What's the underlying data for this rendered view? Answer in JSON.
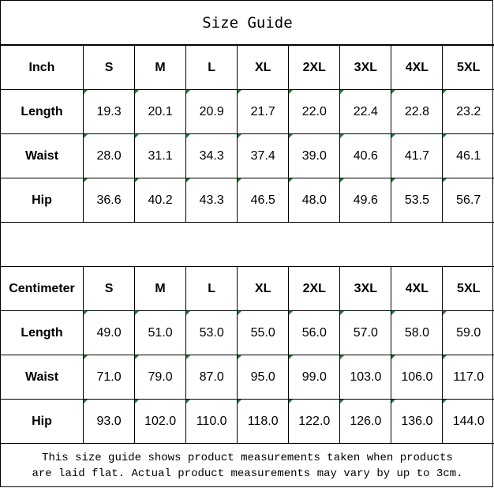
{
  "title": "Size Guide",
  "sizes": [
    "S",
    "M",
    "L",
    "XL",
    "2XL",
    "3XL",
    "4XL",
    "5XL"
  ],
  "inch": {
    "unit": "Inch",
    "rows": [
      {
        "label": "Length",
        "values": [
          "19.3",
          "20.1",
          "20.9",
          "21.7",
          "22.0",
          "22.4",
          "22.8",
          "23.2"
        ]
      },
      {
        "label": "Waist",
        "values": [
          "28.0",
          "31.1",
          "34.3",
          "37.4",
          "39.0",
          "40.6",
          "41.7",
          "46.1"
        ]
      },
      {
        "label": "Hip",
        "values": [
          "36.6",
          "40.2",
          "43.3",
          "46.5",
          "48.0",
          "49.6",
          "53.5",
          "56.7"
        ]
      }
    ]
  },
  "cm": {
    "unit": "Centimeter",
    "rows": [
      {
        "label": "Length",
        "values": [
          "49.0",
          "51.0",
          "53.0",
          "55.0",
          "56.0",
          "57.0",
          "58.0",
          "59.0"
        ]
      },
      {
        "label": "Waist",
        "values": [
          "71.0",
          "79.0",
          "87.0",
          "95.0",
          "99.0",
          "103.0",
          "106.0",
          "117.0"
        ]
      },
      {
        "label": "Hip",
        "values": [
          "93.0",
          "102.0",
          "110.0",
          "118.0",
          "122.0",
          "126.0",
          "136.0",
          "144.0"
        ]
      }
    ]
  },
  "footer": {
    "line1": "This size guide shows product measurements taken when products",
    "line2": "are laid flat. Actual product measurements may vary by up to 3cm."
  },
  "colors": {
    "error_indicator": "#1e7d32"
  }
}
